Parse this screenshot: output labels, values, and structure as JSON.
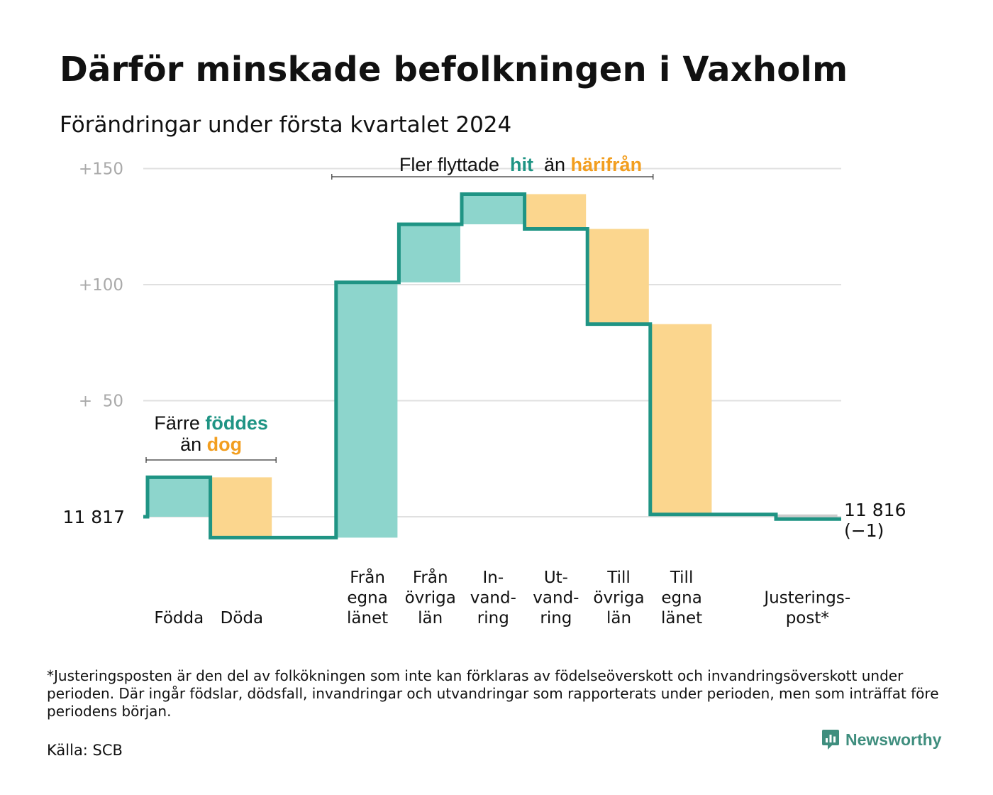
{
  "header": {
    "title": "Därför minskade befolkningen i Vaxholm",
    "subtitle": "Förändringar under första kvartalet 2024"
  },
  "chart_data": {
    "type": "waterfall",
    "baseline_label": "11 817",
    "end_label": "11 816",
    "end_change_label": "(−1)",
    "y_ticks": [
      {
        "value": 150,
        "label": "+150"
      },
      {
        "value": 100,
        "label": "+100"
      },
      {
        "value": 50,
        "label": "+  50"
      },
      {
        "value": 0,
        "label": ""
      }
    ],
    "ylim": [
      -12,
      152
    ],
    "grid": true,
    "steps": [
      {
        "key": "fodda",
        "lines": [
          "Födda"
        ],
        "change": 17,
        "start": 0,
        "end": 17
      },
      {
        "key": "doda",
        "lines": [
          "Döda"
        ],
        "change": -26,
        "start": 17,
        "end": -9
      },
      {
        "key": "fran-egna-lanet",
        "lines": [
          "Från",
          "egna",
          "länet"
        ],
        "change": 110,
        "start": -9,
        "end": 101
      },
      {
        "key": "fran-ovriga-lan",
        "lines": [
          "Från",
          "övriga",
          "län"
        ],
        "change": 25,
        "start": 101,
        "end": 126
      },
      {
        "key": "invandring",
        "lines": [
          "In-",
          "vand-",
          "ring"
        ],
        "change": 13,
        "start": 126,
        "end": 139
      },
      {
        "key": "utvandring",
        "lines": [
          "Ut-",
          "vand-",
          "ring"
        ],
        "change": -15,
        "start": 139,
        "end": 124
      },
      {
        "key": "till-ovriga-lan",
        "lines": [
          "Till",
          "övriga",
          "län"
        ],
        "change": -41,
        "start": 124,
        "end": 83
      },
      {
        "key": "till-egna-lanet",
        "lines": [
          "Till",
          "egna",
          "länet"
        ],
        "change": -82,
        "start": 83,
        "end": 1
      },
      {
        "key": "justeringspost",
        "lines": [
          "Justerings-",
          "post*"
        ],
        "change": -2,
        "start": 1,
        "end": -1
      }
    ],
    "annotations": [
      {
        "key": "births",
        "line1_prefix": "Färre",
        "line1_highlight": "föddes",
        "line2_prefix": "än",
        "line2_highlight": "dog"
      },
      {
        "key": "moves",
        "prefix": "Fler flyttade",
        "highlight1": "hit",
        "middle": "än",
        "highlight2": "härifrån"
      }
    ],
    "colors": {
      "increase": "#8dd5cc",
      "decrease": "#fbd68e",
      "adjustment": "#cccccc",
      "step_line": "#1f9484",
      "teal_text": "#1f9484",
      "orange_text": "#f29e1f",
      "grid": "#e0e0e0",
      "tick_text": "#aaaaaa"
    }
  },
  "footnote": "*Justeringsposten är den del av folkökningen som inte kan förklaras av födelseöverskott och invandringsöverskott under perioden. Där ingår födslar, dödsfall, invandringar och utvandringar som rapporterats under perioden, men som inträffat före periodens början.",
  "source": "Källa: SCB",
  "brand": {
    "name": "Newsworthy",
    "icon": "newsworthy-logo-icon",
    "color": "#3f8e7e"
  }
}
